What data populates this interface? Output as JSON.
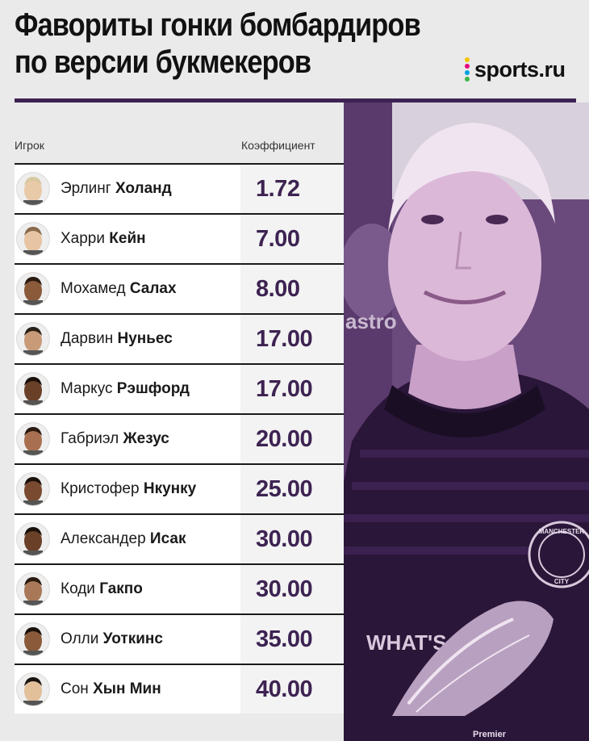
{
  "title": {
    "line1": "Фавориты гонки бомбардиров",
    "line2": "по версии букмекеров"
  },
  "brand": {
    "logo_text": "sports.ru",
    "dot_colors": [
      "#f5c400",
      "#e6007e",
      "#00a0e3",
      "#3bb54a"
    ]
  },
  "colors": {
    "accent": "#3d2352",
    "rule": "#3d2352"
  },
  "table": {
    "col_player": "Игрок",
    "col_odds": "Коэффициент",
    "rows": [
      {
        "first": "Эрлинг",
        "last": "Холанд",
        "odds": "1.72",
        "skin": "#e8c9a8",
        "hair": "#d8c9a0"
      },
      {
        "first": "Харри",
        "last": "Кейн",
        "odds": "7.00",
        "skin": "#e6c4a4",
        "hair": "#8a6a4a"
      },
      {
        "first": "Мохамед",
        "last": "Салах",
        "odds": "8.00",
        "skin": "#8a5a3a",
        "hair": "#2a1a10"
      },
      {
        "first": "Дарвин",
        "last": "Нуньес",
        "odds": "17.00",
        "skin": "#c89a78",
        "hair": "#2a2018"
      },
      {
        "first": "Маркус",
        "last": "Рэшфорд",
        "odds": "17.00",
        "skin": "#6a4028",
        "hair": "#1a100a"
      },
      {
        "first": "Габриэл",
        "last": "Жезус",
        "odds": "20.00",
        "skin": "#a87050",
        "hair": "#2a1a10"
      },
      {
        "first": "Кристофер",
        "last": "Нкунку",
        "odds": "25.00",
        "skin": "#7a4a30",
        "hair": "#1a100a"
      },
      {
        "first": "Александер",
        "last": "Исак",
        "odds": "30.00",
        "skin": "#6a4028",
        "hair": "#1a100a"
      },
      {
        "first": "Коди",
        "last": "Гакпо",
        "odds": "30.00",
        "skin": "#a87858",
        "hair": "#2a1a10"
      },
      {
        "first": "Олли",
        "last": "Уоткинс",
        "odds": "35.00",
        "skin": "#8a5a3a",
        "hair": "#1a100a"
      },
      {
        "first": "Сон",
        "last": "Хын Мин",
        "odds": "40.00",
        "skin": "#e2c09a",
        "hair": "#1a1410"
      }
    ]
  },
  "photo": {
    "icon": "footballer-photo",
    "shirt_lettering": "WHAT'S",
    "badge_lettering": "MANCHESTER CITY",
    "sponsor_lettering": "Premier"
  }
}
